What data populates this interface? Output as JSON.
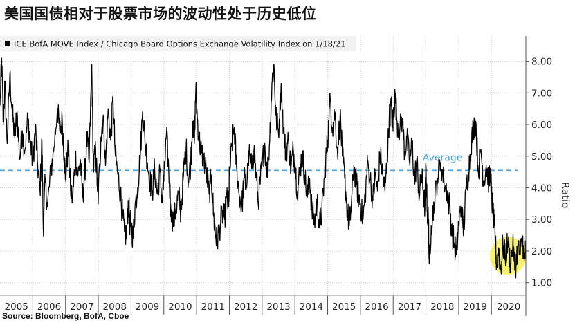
{
  "title": "美国国债相对于股票市场的波动性处于历史低位",
  "source": "Source: Bloomberg, BofA, Cboe",
  "chart_data": {
    "type": "line",
    "legend": "ICE BofA MOVE Index / Chicago Board Options Exchange Volatility Index on 1/18/21",
    "legend_placement": "top-left",
    "ylabel": "Ratio",
    "ylim": [
      0.6,
      8.8
    ],
    "yticks": [
      "1.00",
      "2.00",
      "3.00",
      "4.00",
      "5.00",
      "6.00",
      "7.00",
      "8.00"
    ],
    "y_axis_side": "right",
    "grid": true,
    "xlim": [
      2005.0,
      2021.05
    ],
    "xticks": [
      "2005",
      "2006",
      "2007",
      "2008",
      "2009",
      "2010",
      "2011",
      "2012",
      "2013",
      "2014",
      "2015",
      "2016",
      "2017",
      "2018",
      "2019",
      "2020"
    ],
    "series": [
      {
        "color": "#000000",
        "points": [
          [
            2005.0,
            6.6
          ],
          [
            2005.05,
            8.1
          ],
          [
            2005.1,
            6.0
          ],
          [
            2005.15,
            7.3
          ],
          [
            2005.22,
            5.4
          ],
          [
            2005.3,
            7.6
          ],
          [
            2005.38,
            6.3
          ],
          [
            2005.45,
            5.6
          ],
          [
            2005.52,
            6.4
          ],
          [
            2005.6,
            4.9
          ],
          [
            2005.68,
            5.8
          ],
          [
            2005.76,
            5.2
          ],
          [
            2005.85,
            6.2
          ],
          [
            2005.93,
            5.4
          ],
          [
            2006.0,
            4.8
          ],
          [
            2006.08,
            5.9
          ],
          [
            2006.15,
            4.7
          ],
          [
            2006.22,
            3.9
          ],
          [
            2006.28,
            5.5
          ],
          [
            2006.32,
            2.7
          ],
          [
            2006.38,
            4.2
          ],
          [
            2006.45,
            3.4
          ],
          [
            2006.55,
            4.5
          ],
          [
            2006.65,
            5.3
          ],
          [
            2006.75,
            6.5
          ],
          [
            2006.82,
            5.8
          ],
          [
            2006.9,
            6.1
          ],
          [
            2006.96,
            5.0
          ],
          [
            2007.0,
            4.3
          ],
          [
            2007.08,
            5.3
          ],
          [
            2007.15,
            4.0
          ],
          [
            2007.22,
            3.6
          ],
          [
            2007.3,
            5.0
          ],
          [
            2007.38,
            4.4
          ],
          [
            2007.45,
            4.9
          ],
          [
            2007.52,
            3.7
          ],
          [
            2007.58,
            4.3
          ],
          [
            2007.65,
            5.6
          ],
          [
            2007.72,
            4.8
          ],
          [
            2007.8,
            7.9
          ],
          [
            2007.85,
            4.6
          ],
          [
            2007.92,
            5.2
          ],
          [
            2007.97,
            4.1
          ],
          [
            2008.0,
            3.7
          ],
          [
            2008.08,
            5.6
          ],
          [
            2008.15,
            6.3
          ],
          [
            2008.22,
            4.7
          ],
          [
            2008.3,
            6.5
          ],
          [
            2008.38,
            5.5
          ],
          [
            2008.45,
            6.8
          ],
          [
            2008.52,
            5.0
          ],
          [
            2008.6,
            4.4
          ],
          [
            2008.68,
            3.8
          ],
          [
            2008.74,
            3.1
          ],
          [
            2008.8,
            2.6
          ],
          [
            2008.86,
            2.5
          ],
          [
            2008.92,
            3.6
          ],
          [
            2008.97,
            2.8
          ],
          [
            2009.0,
            2.9
          ],
          [
            2009.06,
            2.4
          ],
          [
            2009.12,
            3.4
          ],
          [
            2009.2,
            4.0
          ],
          [
            2009.28,
            5.0
          ],
          [
            2009.35,
            6.4
          ],
          [
            2009.42,
            5.6
          ],
          [
            2009.5,
            4.8
          ],
          [
            2009.58,
            4.2
          ],
          [
            2009.65,
            3.9
          ],
          [
            2009.72,
            4.6
          ],
          [
            2009.8,
            3.8
          ],
          [
            2009.88,
            4.5
          ],
          [
            2009.95,
            3.6
          ],
          [
            2010.0,
            4.2
          ],
          [
            2010.08,
            5.7
          ],
          [
            2010.15,
            4.5
          ],
          [
            2010.22,
            3.3
          ],
          [
            2010.3,
            2.9
          ],
          [
            2010.38,
            3.4
          ],
          [
            2010.45,
            3.8
          ],
          [
            2010.52,
            3.2
          ],
          [
            2010.6,
            4.4
          ],
          [
            2010.68,
            5.3
          ],
          [
            2010.75,
            4.2
          ],
          [
            2010.82,
            4.8
          ],
          [
            2010.88,
            6.1
          ],
          [
            2010.93,
            5.4
          ],
          [
            2010.98,
            7.3
          ],
          [
            2011.0,
            6.5
          ],
          [
            2011.08,
            5.5
          ],
          [
            2011.15,
            5.1
          ],
          [
            2011.22,
            4.9
          ],
          [
            2011.3,
            4.5
          ],
          [
            2011.38,
            3.8
          ],
          [
            2011.45,
            4.4
          ],
          [
            2011.52,
            3.1
          ],
          [
            2011.58,
            2.5
          ],
          [
            2011.62,
            2.3
          ],
          [
            2011.7,
            2.7
          ],
          [
            2011.78,
            3.2
          ],
          [
            2011.85,
            3.0
          ],
          [
            2011.92,
            3.7
          ],
          [
            2011.98,
            3.4
          ],
          [
            2012.0,
            4.4
          ],
          [
            2012.08,
            5.3
          ],
          [
            2012.15,
            5.9
          ],
          [
            2012.22,
            4.6
          ],
          [
            2012.3,
            3.8
          ],
          [
            2012.38,
            3.4
          ],
          [
            2012.45,
            4.3
          ],
          [
            2012.52,
            4.0
          ],
          [
            2012.6,
            5.1
          ],
          [
            2012.68,
            4.6
          ],
          [
            2012.75,
            5.2
          ],
          [
            2012.82,
            4.4
          ],
          [
            2012.88,
            3.5
          ],
          [
            2012.95,
            4.3
          ],
          [
            2013.0,
            4.7
          ],
          [
            2013.08,
            5.4
          ],
          [
            2013.15,
            4.4
          ],
          [
            2013.22,
            5.3
          ],
          [
            2013.3,
            7.3
          ],
          [
            2013.36,
            7.9
          ],
          [
            2013.42,
            6.3
          ],
          [
            2013.5,
            5.7
          ],
          [
            2013.58,
            7.3
          ],
          [
            2013.65,
            5.9
          ],
          [
            2013.72,
            5.1
          ],
          [
            2013.8,
            5.5
          ],
          [
            2013.88,
            4.6
          ],
          [
            2013.95,
            5.2
          ],
          [
            2014.0,
            4.8
          ],
          [
            2014.08,
            3.9
          ],
          [
            2014.15,
            4.5
          ],
          [
            2014.22,
            5.1
          ],
          [
            2014.3,
            4.4
          ],
          [
            2014.38,
            3.7
          ],
          [
            2014.45,
            4.3
          ],
          [
            2014.52,
            3.3
          ],
          [
            2014.6,
            2.9
          ],
          [
            2014.68,
            3.6
          ],
          [
            2014.75,
            2.8
          ],
          [
            2014.82,
            3.2
          ],
          [
            2014.9,
            4.3
          ],
          [
            2014.96,
            5.1
          ],
          [
            2015.0,
            5.5
          ],
          [
            2015.08,
            6.8
          ],
          [
            2015.15,
            5.9
          ],
          [
            2015.22,
            6.4
          ],
          [
            2015.3,
            5.1
          ],
          [
            2015.38,
            6.3
          ],
          [
            2015.45,
            5.0
          ],
          [
            2015.52,
            4.3
          ],
          [
            2015.6,
            3.3
          ],
          [
            2015.66,
            2.8
          ],
          [
            2015.72,
            3.4
          ],
          [
            2015.8,
            4.7
          ],
          [
            2015.88,
            4.1
          ],
          [
            2015.95,
            3.7
          ],
          [
            2016.0,
            3.5
          ],
          [
            2016.08,
            3.0
          ],
          [
            2016.15,
            3.8
          ],
          [
            2016.22,
            4.8
          ],
          [
            2016.3,
            4.3
          ],
          [
            2016.38,
            3.6
          ],
          [
            2016.45,
            4.4
          ],
          [
            2016.52,
            3.9
          ],
          [
            2016.6,
            5.1
          ],
          [
            2016.68,
            4.4
          ],
          [
            2016.75,
            3.9
          ],
          [
            2016.82,
            5.0
          ],
          [
            2016.88,
            6.2
          ],
          [
            2016.94,
            6.6
          ],
          [
            2016.99,
            5.9
          ],
          [
            2017.0,
            6.3
          ],
          [
            2017.06,
            6.9
          ],
          [
            2017.12,
            6.1
          ],
          [
            2017.2,
            5.8
          ],
          [
            2017.28,
            6.2
          ],
          [
            2017.35,
            5.1
          ],
          [
            2017.42,
            5.6
          ],
          [
            2017.5,
            4.8
          ],
          [
            2017.58,
            5.4
          ],
          [
            2017.65,
            4.2
          ],
          [
            2017.72,
            4.9
          ],
          [
            2017.8,
            3.7
          ],
          [
            2017.86,
            4.4
          ],
          [
            2017.92,
            3.9
          ],
          [
            2017.97,
            3.4
          ],
          [
            2018.0,
            4.7
          ],
          [
            2018.04,
            3.3
          ],
          [
            2018.08,
            2.9
          ],
          [
            2018.1,
            1.6
          ],
          [
            2018.16,
            2.8
          ],
          [
            2018.25,
            3.5
          ],
          [
            2018.35,
            4.3
          ],
          [
            2018.45,
            4.8
          ],
          [
            2018.55,
            4.2
          ],
          [
            2018.65,
            3.9
          ],
          [
            2018.72,
            3.4
          ],
          [
            2018.8,
            2.6
          ],
          [
            2018.87,
            2.2
          ],
          [
            2018.93,
            1.9
          ],
          [
            2019.0,
            2.9
          ],
          [
            2019.08,
            3.4
          ],
          [
            2019.15,
            2.6
          ],
          [
            2019.22,
            3.9
          ],
          [
            2019.3,
            4.5
          ],
          [
            2019.38,
            5.4
          ],
          [
            2019.45,
            5.9
          ],
          [
            2019.52,
            6.1
          ],
          [
            2019.6,
            4.5
          ],
          [
            2019.68,
            5.2
          ],
          [
            2019.76,
            4.2
          ],
          [
            2019.84,
            4.7
          ],
          [
            2019.92,
            4.2
          ],
          [
            2019.98,
            4.4
          ],
          [
            2020.0,
            3.8
          ],
          [
            2020.04,
            3.3
          ],
          [
            2020.08,
            2.8
          ],
          [
            2020.12,
            2.3
          ],
          [
            2020.16,
            1.5
          ],
          [
            2020.22,
            2.1
          ],
          [
            2020.28,
            1.4
          ],
          [
            2020.35,
            2.2
          ],
          [
            2020.42,
            1.8
          ],
          [
            2020.5,
            2.3
          ],
          [
            2020.58,
            1.6
          ],
          [
            2020.65,
            2.2
          ],
          [
            2020.72,
            1.4
          ],
          [
            2020.8,
            2.1
          ],
          [
            2020.88,
            1.9
          ],
          [
            2020.95,
            2.4
          ],
          [
            2021.0,
            1.7
          ],
          [
            2021.04,
            2.0
          ]
        ]
      }
    ],
    "average": {
      "label": "Average",
      "value": 4.55,
      "color": "#4aa3df"
    },
    "annotations": [
      {
        "type": "ellipse",
        "x_range": [
          2019.95,
          2021.07
        ],
        "y_range": [
          1.25,
          2.45
        ],
        "fill": "#f5ef5a"
      }
    ]
  }
}
